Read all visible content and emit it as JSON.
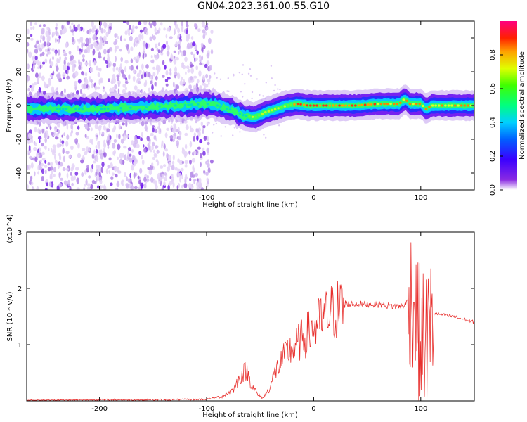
{
  "title": "GN04.2023.361.00.55.G10",
  "colors": {
    "snr_line": "#e8302e",
    "frame": "#000000"
  },
  "chart_data": [
    {
      "type": "heatmap",
      "xlabel": "Height of straight line (km)",
      "ylabel": "Frequency (Hz)",
      "xlim": [
        -268,
        150
      ],
      "ylim": [
        -50,
        50
      ],
      "x_ticks": [
        -200,
        -100,
        0,
        100
      ],
      "x_tick_labels": [
        "-200",
        "-100",
        "0",
        "100"
      ],
      "y_ticks": [
        -40,
        -20,
        0,
        20,
        40
      ],
      "y_tick_labels": [
        "-40",
        "-20",
        "0",
        "20",
        "40"
      ],
      "colorbar": {
        "label": "Normalized spectral amplitude",
        "range": [
          0,
          1
        ],
        "ticks": [
          0.0,
          0.2,
          0.4,
          0.6,
          0.8
        ],
        "tick_labels": [
          "0.0",
          "0.2",
          "0.4",
          "0.6",
          "0.8"
        ]
      },
      "ridge": {
        "x": [
          -268,
          -240,
          -200,
          -160,
          -130,
          -100,
          -90,
          -75,
          -65,
          -55,
          -45,
          -35,
          -25,
          -15,
          -5,
          0,
          20,
          40,
          60,
          80,
          85,
          90,
          100,
          105,
          110,
          150
        ],
        "y": [
          -2,
          -2,
          -2,
          -1,
          0,
          1,
          0,
          -3,
          -6,
          -7,
          -4,
          -2,
          0,
          1,
          0,
          0,
          0,
          0,
          1,
          1,
          4,
          1,
          1,
          -2,
          0,
          0
        ]
      },
      "noise_region_xlim": [
        -268,
        -95
      ]
    },
    {
      "type": "line",
      "xlabel": "Height of straight line (km)",
      "ylabel": "SNR (10 * v/v)",
      "y_multiplier": "(x10^4)",
      "xlim": [
        -268,
        150
      ],
      "ylim": [
        0,
        3
      ],
      "x_ticks": [
        -200,
        -100,
        0,
        100
      ],
      "x_tick_labels": [
        "-200",
        "-100",
        "0",
        "100"
      ],
      "y_ticks": [
        1,
        2,
        3
      ],
      "y_tick_labels": [
        "1",
        "2",
        "3"
      ],
      "envelope": {
        "x": [
          -268,
          -200,
          -140,
          -100,
          -85,
          -75,
          -68,
          -63,
          -58,
          -52,
          -47,
          -42,
          -35,
          -25,
          -10,
          0,
          15,
          25,
          30,
          35,
          60,
          75,
          85,
          92,
          100,
          108,
          112,
          130,
          150
        ],
        "y": [
          0.01,
          0.02,
          0.02,
          0.03,
          0.08,
          0.2,
          0.45,
          0.55,
          0.3,
          0.1,
          0.05,
          0.2,
          0.55,
          0.85,
          1.1,
          1.3,
          1.55,
          1.65,
          1.72,
          1.72,
          1.72,
          1.68,
          1.7,
          1.9,
          1.0,
          1.2,
          1.55,
          1.5,
          1.4
        ]
      }
    }
  ]
}
